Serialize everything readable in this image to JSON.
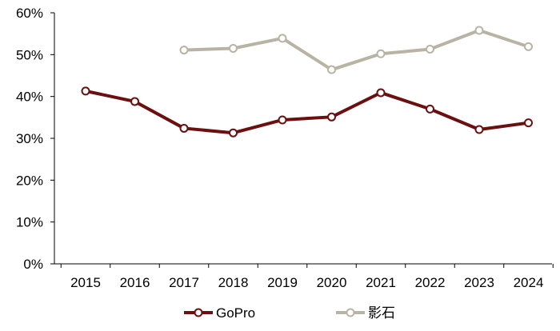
{
  "chart_data": {
    "type": "line",
    "title": "",
    "xlabel": "",
    "ylabel": "",
    "categories": [
      "2015",
      "2016",
      "2017",
      "2018",
      "2019",
      "2020",
      "2021",
      "2022",
      "2023",
      "2024"
    ],
    "y_ticks": [
      "0%",
      "10%",
      "20%",
      "30%",
      "40%",
      "50%",
      "60%"
    ],
    "ylim": [
      0,
      60
    ],
    "grid": false,
    "legend_position": "bottom",
    "series": [
      {
        "name": "GoPro",
        "color": "#6b0f0f",
        "values": [
          41.3,
          38.8,
          32.4,
          31.3,
          34.4,
          35.1,
          40.9,
          37.0,
          32.1,
          33.7
        ]
      },
      {
        "name": "影石",
        "color": "#b8b4a4",
        "values": [
          null,
          null,
          51.1,
          51.5,
          53.9,
          46.4,
          50.2,
          51.3,
          55.8,
          51.9
        ]
      }
    ]
  }
}
